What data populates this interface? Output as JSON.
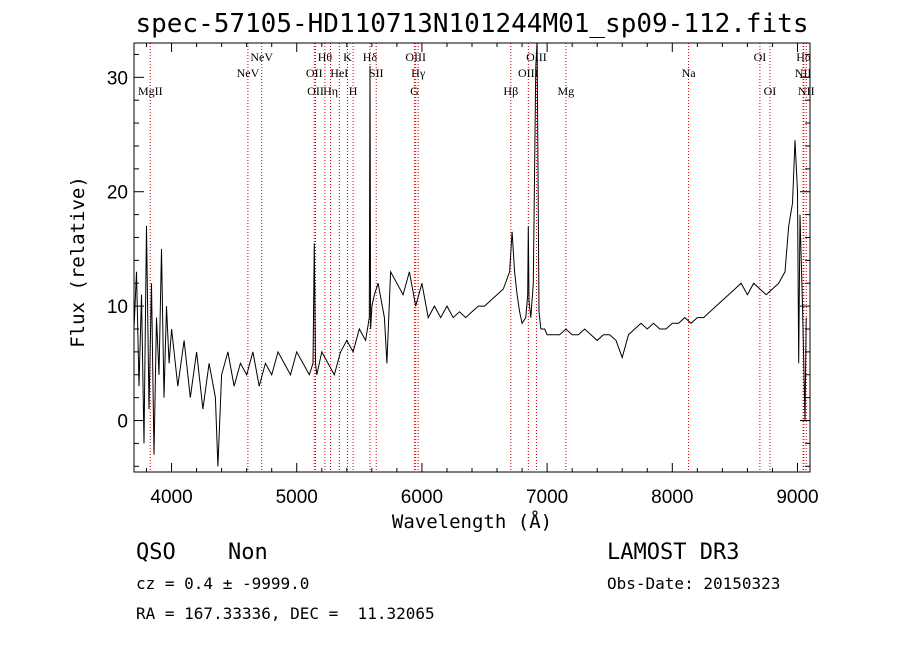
{
  "chart_data": {
    "type": "line",
    "title": "spec-57105-HD110713N101244M01_sp09-112.fits",
    "xlabel": "Wavelength (Å)",
    "ylabel": "Flux (relative)",
    "xlim": [
      3700,
      9100
    ],
    "ylim": [
      -4.5,
      33
    ],
    "xticks": [
      4000,
      5000,
      6000,
      7000,
      8000,
      9000
    ],
    "yticks": [
      0,
      10,
      20,
      30
    ],
    "grid": false,
    "line_color": "#000000",
    "marker_color": "#cc0000",
    "spectrum": {
      "x": [
        3700,
        3720,
        3740,
        3760,
        3780,
        3800,
        3820,
        3840,
        3860,
        3880,
        3900,
        3920,
        3940,
        3960,
        3980,
        4000,
        4050,
        4100,
        4150,
        4200,
        4250,
        4300,
        4350,
        4370,
        4400,
        4450,
        4500,
        4550,
        4600,
        4650,
        4700,
        4750,
        4800,
        4850,
        4900,
        4950,
        5000,
        5050,
        5100,
        5130,
        5140,
        5150,
        5160,
        5180,
        5200,
        5250,
        5300,
        5350,
        5400,
        5450,
        5500,
        5550,
        5580,
        5585,
        5590,
        5600,
        5620,
        5650,
        5700,
        5720,
        5750,
        5800,
        5850,
        5900,
        5950,
        6000,
        6050,
        6100,
        6150,
        6200,
        6250,
        6300,
        6350,
        6400,
        6450,
        6500,
        6550,
        6600,
        6650,
        6700,
        6720,
        6740,
        6760,
        6780,
        6800,
        6830,
        6845,
        6850,
        6855,
        6870,
        6890,
        6910,
        6920,
        6935,
        6950,
        6980,
        7000,
        7050,
        7100,
        7150,
        7200,
        7250,
        7300,
        7350,
        7400,
        7450,
        7500,
        7550,
        7600,
        7650,
        7700,
        7750,
        7800,
        7850,
        7900,
        7950,
        8000,
        8050,
        8100,
        8150,
        8200,
        8250,
        8300,
        8350,
        8400,
        8450,
        8500,
        8550,
        8600,
        8650,
        8700,
        8750,
        8800,
        8850,
        8900,
        8930,
        8960,
        8980,
        9000,
        9010,
        9020,
        9040,
        9060,
        9070
      ],
      "y": [
        8,
        13,
        3,
        11,
        -2,
        17,
        1,
        12,
        -3,
        9,
        4,
        15,
        2,
        10,
        5,
        8,
        3,
        7,
        2,
        6,
        1,
        5,
        2,
        -4,
        4,
        6,
        3,
        5,
        4,
        6,
        3,
        5,
        4,
        6,
        5,
        4,
        6,
        5,
        4,
        5,
        15.5,
        5,
        4,
        5,
        6,
        5,
        4,
        6,
        7,
        6,
        8,
        7,
        9,
        31,
        8,
        10,
        11,
        12,
        9,
        5,
        13,
        12,
        11,
        13,
        10,
        12,
        9,
        10,
        9,
        10,
        9,
        9.5,
        9,
        9.5,
        10,
        10,
        10.5,
        11,
        11.5,
        13,
        16.5,
        13,
        11,
        9.5,
        8.5,
        9,
        11,
        17,
        10.5,
        9,
        12,
        31,
        33,
        9.5,
        8,
        8,
        7.5,
        7.5,
        7.5,
        8,
        7.5,
        7.5,
        8,
        7.5,
        7,
        7.5,
        7.5,
        7,
        5.5,
        7.5,
        8,
        8.5,
        8,
        8.5,
        8,
        8,
        8.5,
        8.5,
        9,
        8.5,
        9,
        9,
        9.5,
        10,
        10.5,
        11,
        11.5,
        12,
        11,
        12,
        11.5,
        11,
        11.5,
        12,
        13,
        17,
        19,
        24.5,
        20,
        5,
        18,
        10,
        0,
        9
      ]
    },
    "line_markers": [
      {
        "label": "MgII",
        "wave": 3830,
        "row": 3
      },
      {
        "label": "NeV",
        "wave": 4610,
        "row": 2
      },
      {
        "label": "NeV",
        "wave": 4720,
        "row": 1
      },
      {
        "label": "OII",
        "wave": 5140,
        "row": 2
      },
      {
        "label": "OII",
        "wave": 5150,
        "row": 3
      },
      {
        "label": "Hθ",
        "wave": 5225,
        "row": 1
      },
      {
        "label": "Hη",
        "wave": 5270,
        "row": 3
      },
      {
        "label": "HeI",
        "wave": 5340,
        "row": 2
      },
      {
        "label": "K",
        "wave": 5405,
        "row": 1
      },
      {
        "label": "H",
        "wave": 5450,
        "row": 3
      },
      {
        "label": "Hδ",
        "wave": 5585,
        "row": 1
      },
      {
        "label": "SII",
        "wave": 5635,
        "row": 2
      },
      {
        "label": "OIII",
        "wave": 5950,
        "row": 1
      },
      {
        "label": "Hγ",
        "wave": 5970,
        "row": 2
      },
      {
        "label": "G",
        "wave": 5940,
        "row": 3
      },
      {
        "label": "Hβ",
        "wave": 6710,
        "row": 3
      },
      {
        "label": "OIII",
        "wave": 6850,
        "row": 2
      },
      {
        "label": "OIII",
        "wave": 6915,
        "row": 1
      },
      {
        "label": "Mg",
        "wave": 7150,
        "row": 3
      },
      {
        "label": "Na",
        "wave": 8130,
        "row": 2
      },
      {
        "label": "OI",
        "wave": 8700,
        "row": 1
      },
      {
        "label": "OI",
        "wave": 8780,
        "row": 3
      },
      {
        "label": "Hα",
        "wave": 9050,
        "row": 1
      },
      {
        "label": "NII",
        "wave": 9045,
        "row": 2
      },
      {
        "label": "NII",
        "wave": 9070,
        "row": 3
      }
    ]
  },
  "info": {
    "class": "QSO",
    "subclass": "Non",
    "survey": "LAMOST DR3",
    "cz": "cz = 0.4 ± -9999.0",
    "obsdate": "Obs-Date: 20150323",
    "radec": "RA = 167.33336, DEC =  11.32065"
  }
}
